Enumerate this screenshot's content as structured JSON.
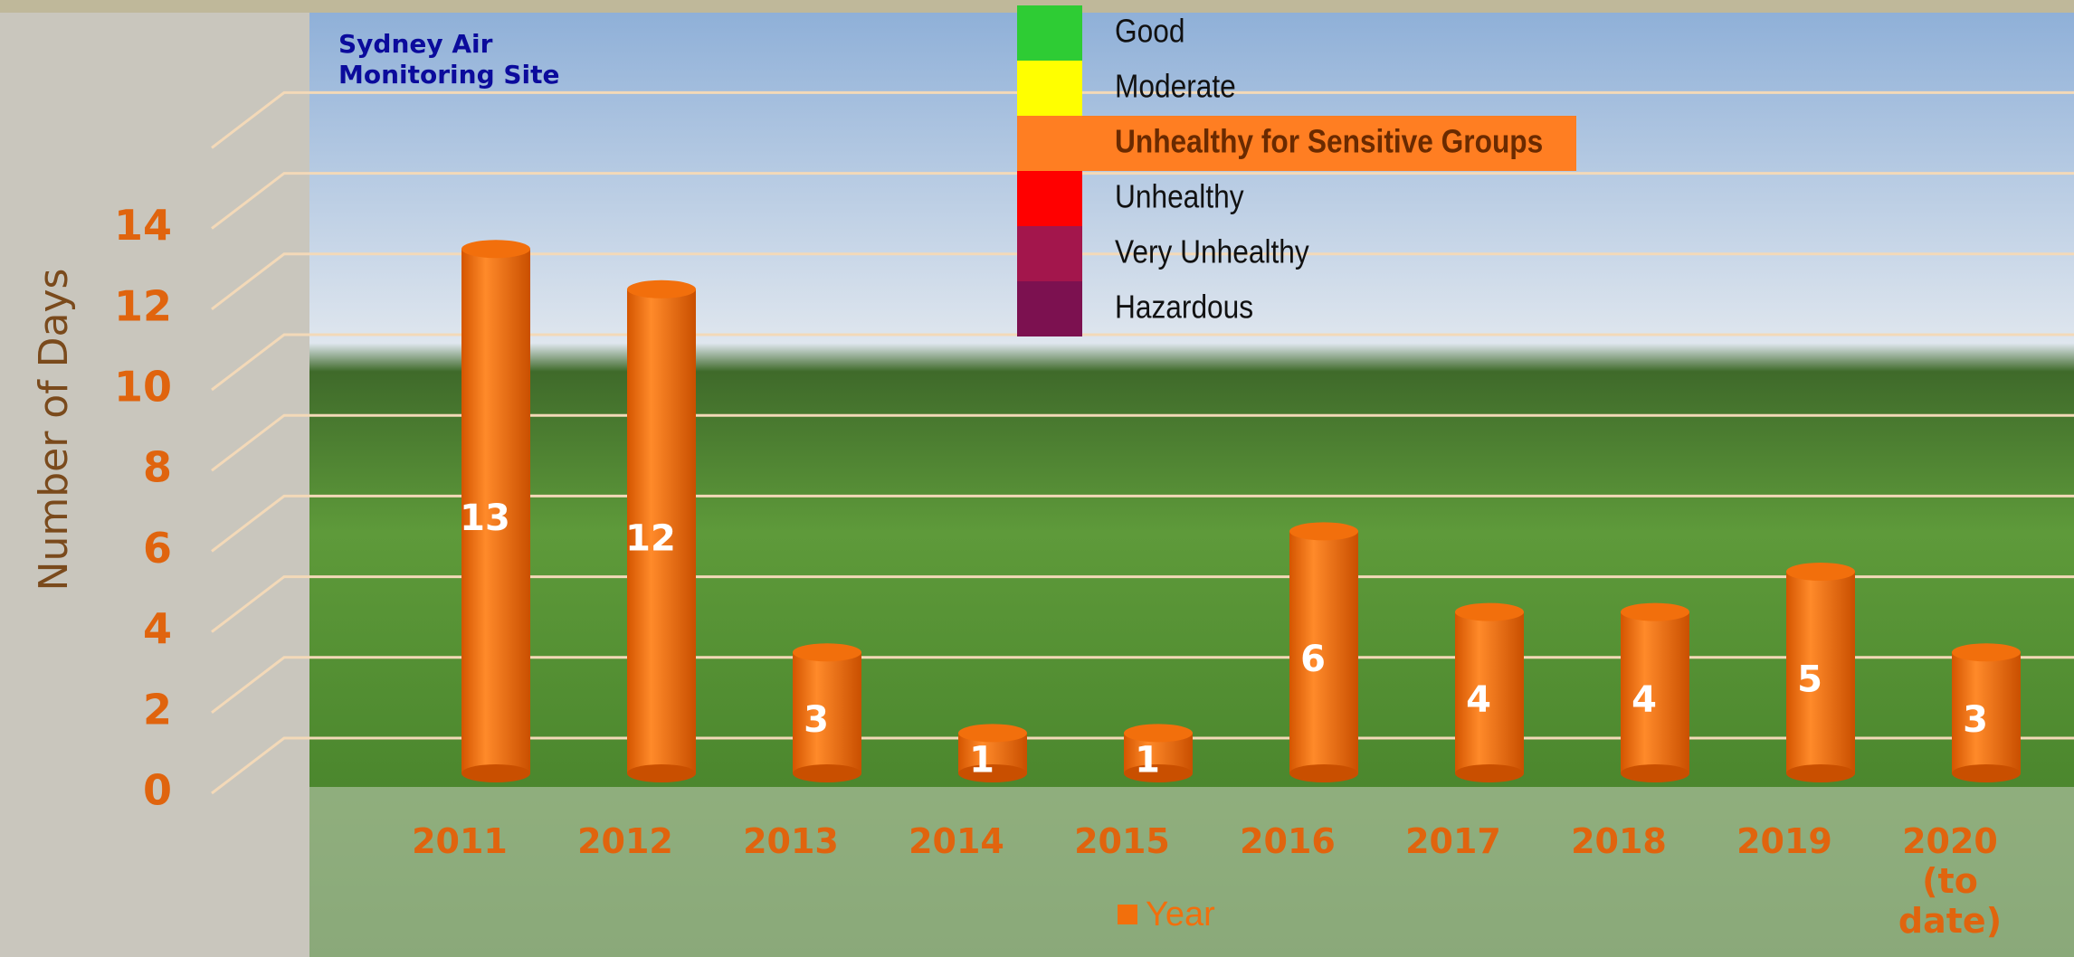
{
  "chart_data": {
    "type": "bar",
    "annotation": "Sydney Air Monitoring Site",
    "y_label": "Number of Days",
    "categories": [
      "2011",
      "2012",
      "2013",
      "2014",
      "2015",
      "2016",
      "2017",
      "2018",
      "2019",
      "2020 (to date)"
    ],
    "series": [
      {
        "name": "Year",
        "color": "#f26f0c",
        "values": [
          13,
          12,
          3,
          1,
          1,
          6,
          4,
          4,
          5,
          3
        ]
      }
    ],
    "ylim": [
      0,
      16
    ],
    "yticks": [
      0,
      2,
      4,
      6,
      8,
      10,
      12,
      14
    ],
    "grid": true,
    "legend": "bottom",
    "aqi_legend": {
      "highlighted": 2,
      "items": [
        {
          "label": "Good",
          "color": "#2ecc34"
        },
        {
          "label": "Moderate",
          "color": "#ffff00"
        },
        {
          "label": "Unhealthy for Sensitive Groups",
          "color": "#ff7e22"
        },
        {
          "label": "Unhealthy",
          "color": "#ff0000"
        },
        {
          "label": "Very Unhealthy",
          "color": "#a3164c"
        },
        {
          "label": "Hazardous",
          "color": "#7c1150"
        }
      ]
    }
  }
}
